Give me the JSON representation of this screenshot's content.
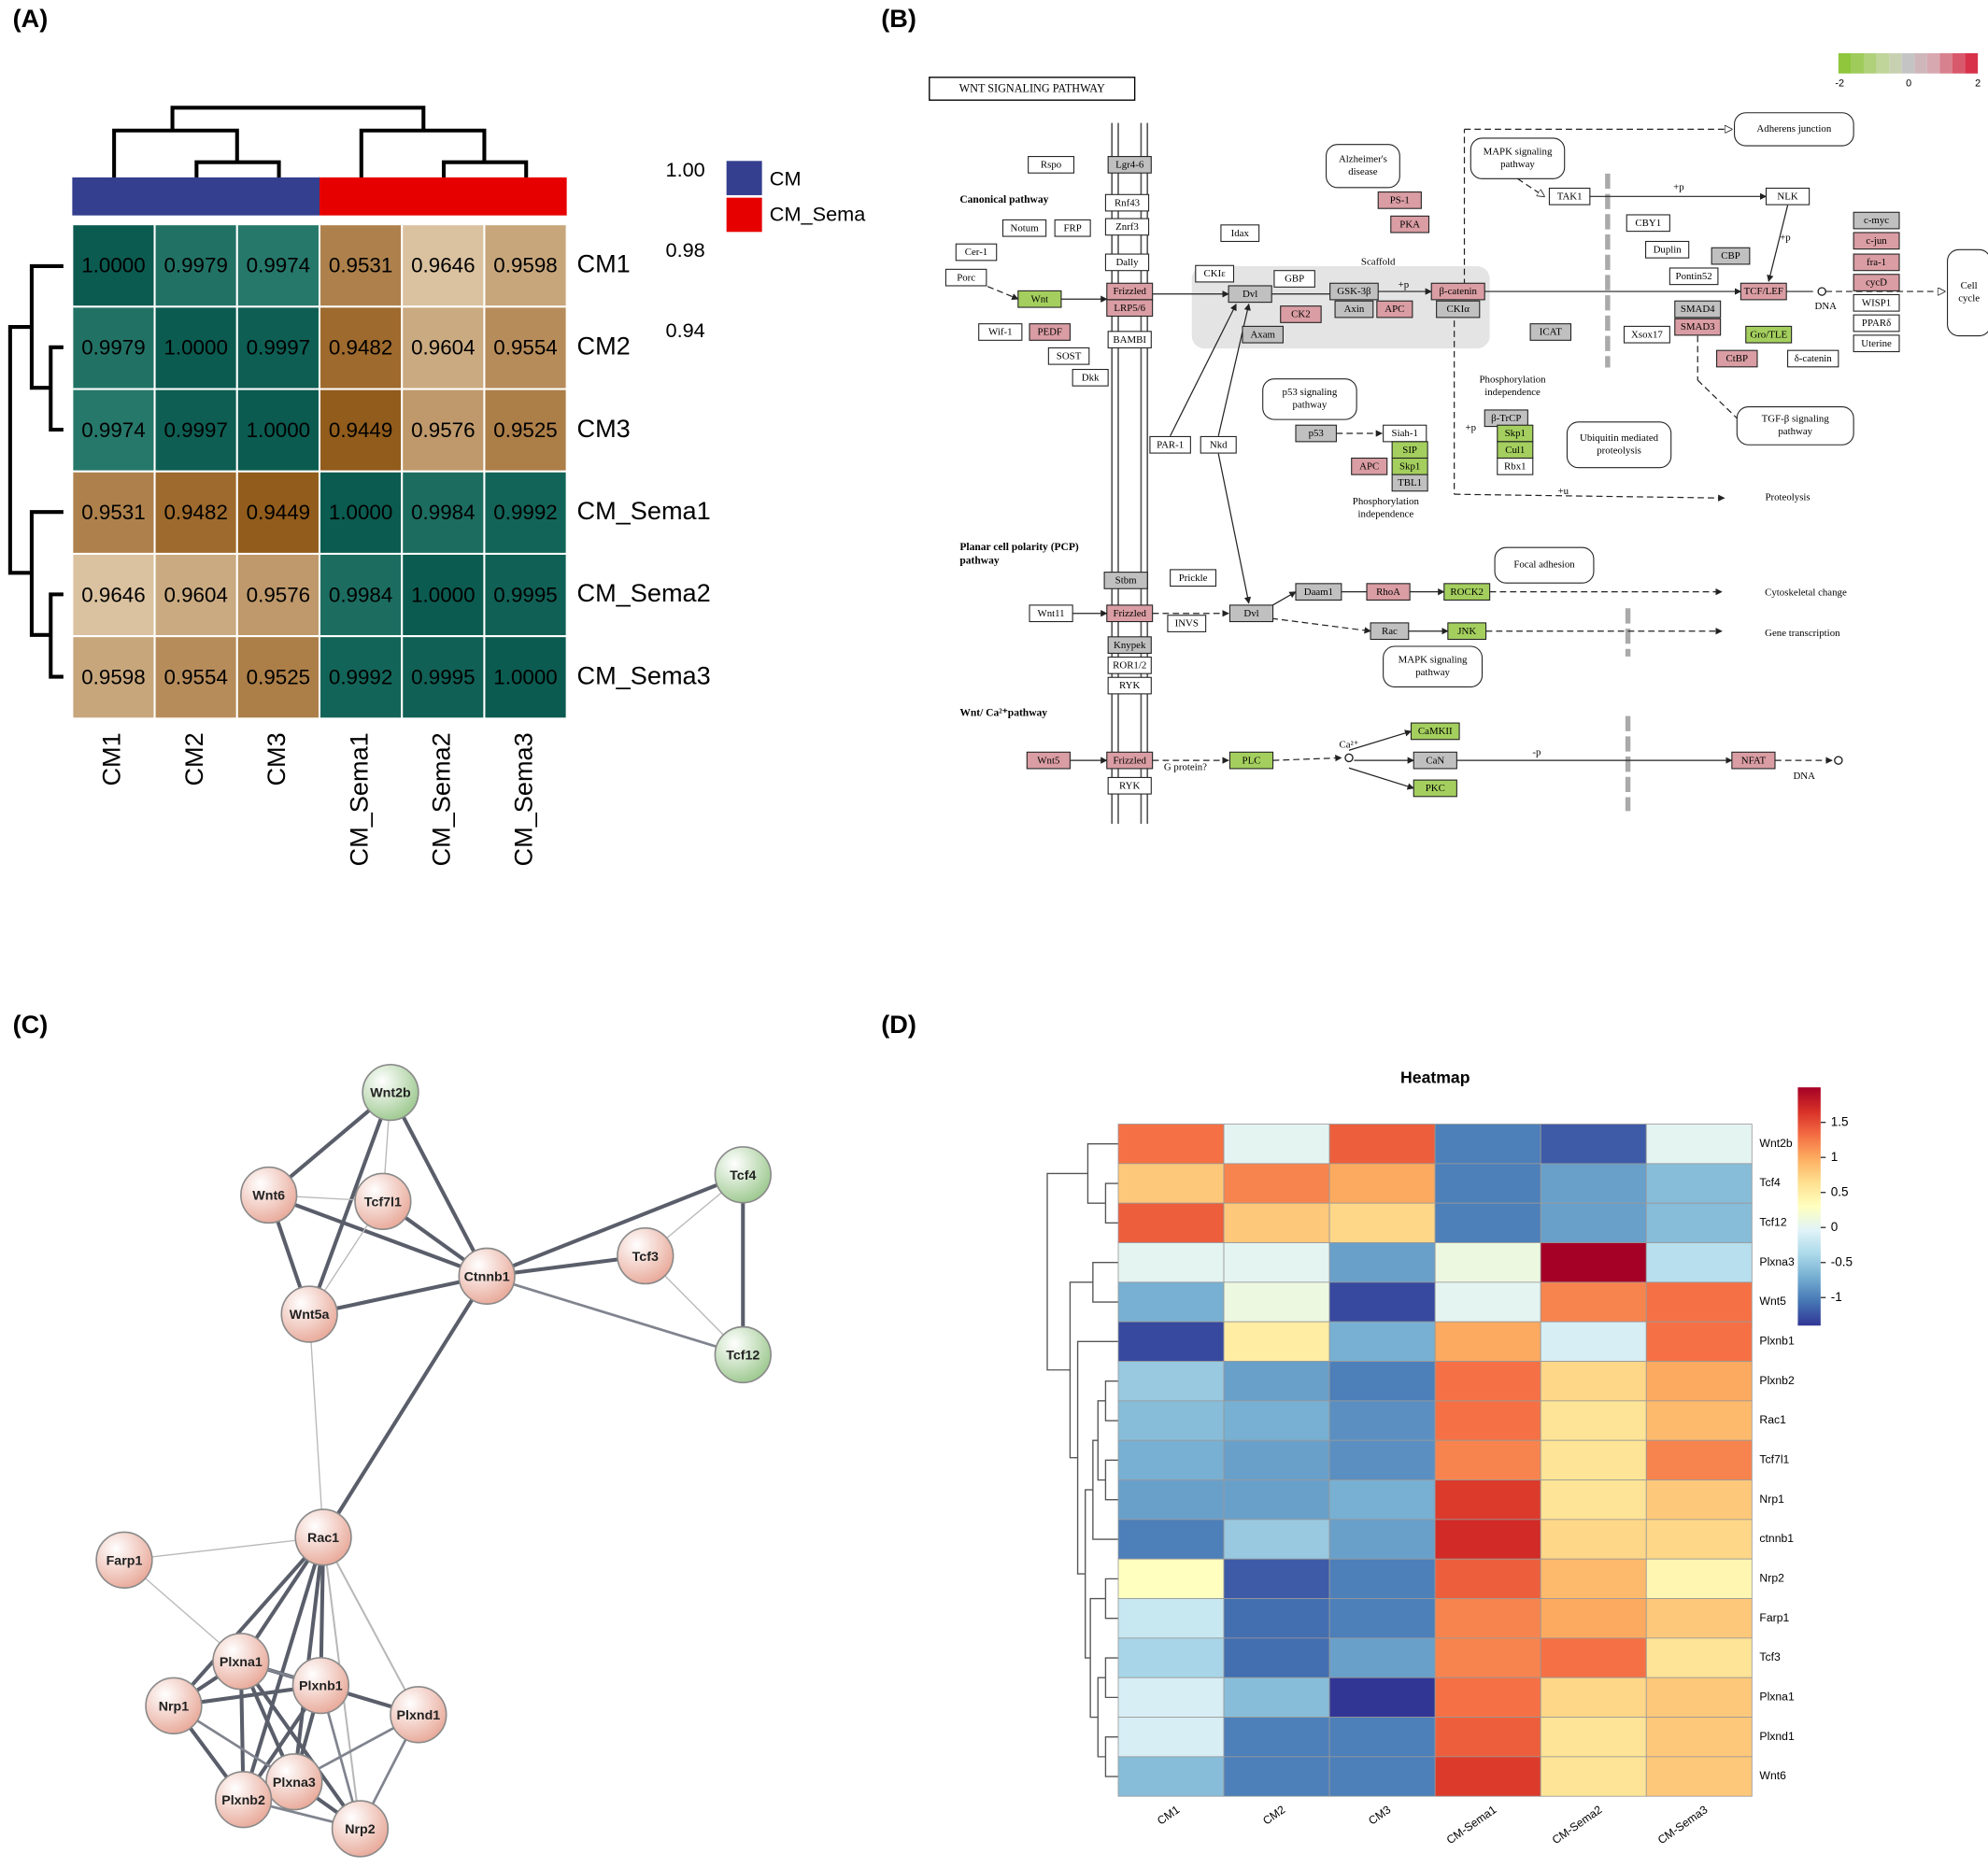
{
  "panel_labels": [
    "(A)",
    "(B)",
    "(C)",
    "(D)"
  ],
  "panel_a": {
    "type": "heatmap",
    "rows": [
      "CM1",
      "CM2",
      "CM3",
      "CM_Sema1",
      "CM_Sema2",
      "CM_Sema3"
    ],
    "columns": [
      "CM1",
      "CM2",
      "CM3",
      "CM_Sema1",
      "CM_Sema2",
      "CM_Sema3"
    ],
    "values": [
      [
        1,
        0.9979,
        0.9974,
        0.9531,
        0.9646,
        0.9598
      ],
      [
        0.9979,
        1,
        0.9997,
        0.9482,
        0.9604,
        0.9554
      ],
      [
        0.9974,
        0.9997,
        1,
        0.9449,
        0.9576,
        0.9525
      ],
      [
        0.9531,
        0.9482,
        0.9449,
        1,
        0.9984,
        0.9992
      ],
      [
        0.9646,
        0.9604,
        0.9576,
        0.9984,
        1,
        0.9995
      ],
      [
        0.9598,
        0.9554,
        0.9525,
        0.9992,
        0.9995,
        1
      ]
    ],
    "value_labels": [
      [
        "1.0000",
        "0.9979",
        "0.9974",
        "0.9531",
        "0.9646",
        "0.9598"
      ],
      [
        "0.9979",
        "1.0000",
        "0.9997",
        "0.9482",
        "0.9604",
        "0.9554"
      ],
      [
        "0.9974",
        "0.9997",
        "1.0000",
        "0.9449",
        "0.9576",
        "0.9525"
      ],
      [
        "0.9531",
        "0.9482",
        "0.9449",
        "1.0000",
        "0.9984",
        "0.9992"
      ],
      [
        "0.9646",
        "0.9604",
        "0.9576",
        "0.9984",
        "1.0000",
        "0.9995"
      ],
      [
        "0.9598",
        "0.9554",
        "0.9525",
        "0.9992",
        "0.9995",
        "1.0000"
      ]
    ],
    "legend": [
      {
        "name": "CM",
        "color": "#343f8f"
      },
      {
        "name": "CM_Sema",
        "color": "#e60000"
      }
    ],
    "color_ticks": [
      {
        "value": 1,
        "label": "1.00"
      },
      0.98,
      0.94
    ]
  },
  "panel_b": {
    "title": "WNT SIGNALING PATHWAY",
    "scale_ticks": [
      -2,
      0,
      2
    ],
    "sections": [
      [
        "Canonical pathway"
      ],
      [
        "Planar cell polarity (PCP)",
        "pathway"
      ],
      [
        "Wnt/ Ca²⁺pathway"
      ]
    ],
    "nodes": [
      {
        "label": "Rspo",
        "fill": "#ffffff"
      },
      {
        "label": "Lgr4-6",
        "fill": "#c0c0c0"
      },
      {
        "label": "Rnf43",
        "fill": "#ffffff"
      },
      {
        "label": "Znrf3",
        "fill": "#ffffff"
      },
      {
        "label": "Notum",
        "fill": "#ffffff"
      },
      {
        "label": "FRP",
        "fill": "#ffffff"
      },
      {
        "label": "Cer-1",
        "fill": "#ffffff"
      },
      {
        "label": "Dally",
        "fill": "#ffffff"
      },
      {
        "label": "Porc",
        "fill": "#ffffff"
      },
      {
        "label": "Wnt",
        "fill": "#a4cf5e"
      },
      {
        "label": "Frizzled",
        "fill": "#d99da3"
      },
      {
        "label": "LRP5/6",
        "fill": "#d99da3"
      },
      {
        "label": "Wif-1",
        "fill": "#ffffff"
      },
      {
        "label": "PEDF",
        "fill": "#d99da3"
      },
      {
        "label": "BAMBI",
        "fill": "#ffffff"
      },
      {
        "label": "SOST",
        "fill": "#ffffff"
      },
      {
        "label": "Dkk",
        "fill": "#ffffff"
      },
      {
        "label": "Idax",
        "fill": "#ffffff"
      },
      {
        "label": "CKIε",
        "fill": "#ffffff"
      },
      {
        "label": "GBP",
        "fill": "#ffffff"
      },
      {
        "label": "Dvl",
        "fill": "#c0c0c0"
      },
      {
        "label": "CK2",
        "fill": "#d99da3"
      },
      {
        "label": "Axam",
        "fill": "#c0c0c0"
      },
      {
        "label": "GSK-3β",
        "fill": "#c0c0c0"
      },
      {
        "label": "Axin",
        "fill": "#c0c0c0"
      },
      {
        "label": "APC",
        "fill": "#d99da3"
      },
      {
        "label": "β-catenin",
        "fill": "#d99da3"
      },
      {
        "label": "CKIα",
        "fill": "#c0c0c0"
      },
      {
        "label": "PS-1",
        "fill": "#d99da3"
      },
      {
        "label": "PKA",
        "fill": "#d99da3"
      },
      {
        "label": "ICAT",
        "fill": "#c0c0c0"
      },
      {
        "label": "CBY1",
        "fill": "#ffffff"
      },
      {
        "label": "Duplin",
        "fill": "#ffffff"
      },
      {
        "label": "Pontin52",
        "fill": "#ffffff"
      },
      {
        "label": "CBP",
        "fill": "#c0c0c0"
      },
      {
        "label": "Xsox17",
        "fill": "#ffffff"
      },
      {
        "label": "TAK1",
        "fill": "#ffffff"
      },
      {
        "label": "NLK",
        "fill": "#ffffff"
      },
      {
        "label": "SMAD4",
        "fill": "#c0c0c0"
      },
      {
        "label": "SMAD3",
        "fill": "#d99da3"
      },
      {
        "label": "TCF/LEF",
        "fill": "#d99da3"
      },
      {
        "label": "Gro/TLE",
        "fill": "#a4cf5e"
      },
      {
        "label": "CtBP",
        "fill": "#d99da3"
      },
      {
        "label": "δ-catenin",
        "fill": "#ffffff"
      },
      {
        "label": "c-myc",
        "fill": "#c0c0c0"
      },
      {
        "label": "c-jun",
        "fill": "#d99da3"
      },
      {
        "label": "fra-1",
        "fill": "#d99da3"
      },
      {
        "label": "cycD",
        "fill": "#d99da3"
      },
      {
        "label": "WISP1",
        "fill": "#ffffff"
      },
      {
        "label": "PPARδ",
        "fill": "#ffffff"
      },
      {
        "label": "Uterine",
        "fill": "#ffffff"
      },
      {
        "label": "p53",
        "fill": "#c0c0c0"
      },
      {
        "label": "Siah-1",
        "fill": "#ffffff"
      },
      {
        "label": "SIP",
        "fill": "#a4cf5e"
      },
      {
        "label": "APC",
        "fill": "#d99da3"
      },
      {
        "label": "Skp1",
        "fill": "#a4cf5e"
      },
      {
        "label": "TBL1",
        "fill": "#c0c0c0"
      },
      {
        "label": "β-TrCP",
        "fill": "#c0c0c0"
      },
      {
        "label": "Skp1",
        "fill": "#a4cf5e"
      },
      {
        "label": "Cul1",
        "fill": "#a4cf5e"
      },
      {
        "label": "Rbx1",
        "fill": "#ffffff"
      },
      {
        "label": "PAR-1",
        "fill": "#ffffff"
      },
      {
        "label": "Nkd",
        "fill": "#ffffff"
      },
      {
        "label": "Stbm",
        "fill": "#c0c0c0"
      },
      {
        "label": "Prickle",
        "fill": "#ffffff"
      },
      {
        "label": "Wnt11",
        "fill": "#ffffff"
      },
      {
        "label": "Frizzled",
        "fill": "#d99da3"
      },
      {
        "label": "INVS",
        "fill": "#ffffff"
      },
      {
        "label": "Dvl",
        "fill": "#c0c0c0"
      },
      {
        "label": "Daam1",
        "fill": "#c0c0c0"
      },
      {
        "label": "RhoA",
        "fill": "#d99da3"
      },
      {
        "label": "ROCK2",
        "fill": "#a4cf5e"
      },
      {
        "label": "Rac",
        "fill": "#c0c0c0"
      },
      {
        "label": "JNK",
        "fill": "#a4cf5e"
      },
      {
        "label": "Knypek",
        "fill": "#c0c0c0"
      },
      {
        "label": "ROR1/2",
        "fill": "#ffffff"
      },
      {
        "label": "RYK",
        "fill": "#ffffff"
      },
      {
        "label": "Wnt5",
        "fill": "#d99da3"
      },
      {
        "label": "Frizzled",
        "fill": "#d99da3"
      },
      {
        "label": "PLC",
        "fill": "#a4cf5e"
      },
      {
        "label": "CaMKII",
        "fill": "#a4cf5e"
      },
      {
        "label": "CaN",
        "fill": "#c0c0c0"
      },
      {
        "label": "PKC",
        "fill": "#a4cf5e"
      },
      {
        "label": "NFAT",
        "fill": "#d99da3"
      },
      {
        "label": "RYK",
        "fill": "#ffffff"
      }
    ],
    "pathways": [
      [
        "Adherens junction"
      ],
      [
        "Alzheimer's",
        "disease"
      ],
      [
        "MAPK signaling",
        "pathway"
      ],
      [
        "Cell",
        "cycle"
      ],
      [
        "p53 signaling",
        "pathway"
      ],
      [
        "Ubiquitin mediated",
        "proteolysis"
      ],
      [
        "TGF-β signaling",
        "pathway"
      ],
      [
        "Focal adhesion"
      ],
      [
        "MAPK signaling",
        "pathway"
      ]
    ],
    "notes": [
      "Scaffold",
      "+p",
      "+p",
      "+p",
      "+p",
      "+u",
      "-p",
      "DNA",
      "DNA",
      "Phosphorylation",
      "independence",
      "Phosphorylation",
      "independence",
      "Proteolysis",
      "Cytoskeletal change",
      "Gene transcription",
      "G protein?",
      "Ca²⁺"
    ]
  },
  "panel_c": {
    "nodes": [
      {
        "label": "Wnt2b",
        "color": "#9cc88e"
      },
      {
        "label": "Wnt6",
        "color": "#e8a898"
      },
      {
        "label": "Tcf7l1",
        "color": "#e8a898"
      },
      {
        "label": "Ctnnb1",
        "color": "#e8a898"
      },
      {
        "label": "Tcf4",
        "color": "#9cc88e"
      },
      {
        "label": "Tcf3",
        "color": "#e8a898"
      },
      {
        "label": "Wnt5a",
        "color": "#e8a898"
      },
      {
        "label": "Tcf12",
        "color": "#9cc88e"
      },
      {
        "label": "Rac1",
        "color": "#e8a898"
      },
      {
        "label": "Farp1",
        "color": "#e8a898"
      },
      {
        "label": "Plxna1",
        "color": "#e8a898"
      },
      {
        "label": "Plxnb1",
        "color": "#e8a898"
      },
      {
        "label": "Nrp1",
        "color": "#e8a898"
      },
      {
        "label": "Plxnd1",
        "color": "#e8a898"
      },
      {
        "label": "Plxna3",
        "color": "#e8a898"
      },
      {
        "label": "Plxnb2",
        "color": "#e8a898"
      },
      {
        "label": "Nrp2",
        "color": "#e8a898"
      }
    ]
  },
  "panel_d": {
    "type": "heatmap",
    "title": "Heatmap",
    "rows": [
      "Wnt2b",
      "Tcf4",
      "Tcf12",
      "Plxna3",
      "Wnt5",
      "Plxnb1",
      "Plxnb2",
      "Rac1",
      "Tcf7l1",
      "Nrp1",
      "ctnnb1",
      "Nrp2",
      "Farp1",
      "Tcf3",
      "Plxna1",
      "Plxnd1",
      "Wnt6"
    ],
    "columns": [
      "CM1",
      "CM2",
      "CM3",
      "CM-Sema1",
      "CM-Sema2",
      "CM-Sema3"
    ],
    "values": [
      [
        1.3,
        0.0,
        1.4,
        -1.0,
        -1.2,
        0.0
      ],
      [
        0.8,
        1.2,
        1.0,
        -1.0,
        -0.8,
        -0.6
      ],
      [
        1.4,
        0.8,
        0.7,
        -1.0,
        -0.8,
        -0.6
      ],
      [
        0.0,
        0.0,
        -0.8,
        0.1,
        2.0,
        -0.3
      ],
      [
        -0.7,
        0.1,
        -1.3,
        0.0,
        1.2,
        1.3
      ],
      [
        -1.3,
        0.5,
        -0.7,
        1.0,
        -0.1,
        1.3
      ],
      [
        -0.5,
        -0.8,
        -1.0,
        1.3,
        0.7,
        1.0
      ],
      [
        -0.6,
        -0.7,
        -0.9,
        1.3,
        0.6,
        0.9
      ],
      [
        -0.7,
        -0.8,
        -0.9,
        1.2,
        0.6,
        1.2
      ],
      [
        -0.8,
        -0.8,
        -0.7,
        1.6,
        0.6,
        0.8
      ],
      [
        -1.0,
        -0.5,
        -0.8,
        1.7,
        0.7,
        0.7
      ],
      [
        0.3,
        -1.2,
        -1.0,
        1.4,
        0.9,
        0.4
      ],
      [
        -0.2,
        -1.1,
        -1.0,
        1.2,
        1.0,
        0.8
      ],
      [
        -0.4,
        -1.1,
        -0.8,
        1.2,
        1.3,
        0.6
      ],
      [
        -0.1,
        -0.6,
        -1.4,
        1.3,
        0.7,
        0.8
      ],
      [
        -0.1,
        -1.0,
        -1.0,
        1.4,
        0.6,
        0.8
      ],
      [
        -0.6,
        -1.0,
        -1.0,
        1.6,
        0.6,
        0.8
      ]
    ],
    "clim": [
      -1.4,
      2.0
    ],
    "cticks": [
      1.5,
      1,
      0.5,
      0,
      -0.5,
      -1
    ]
  }
}
